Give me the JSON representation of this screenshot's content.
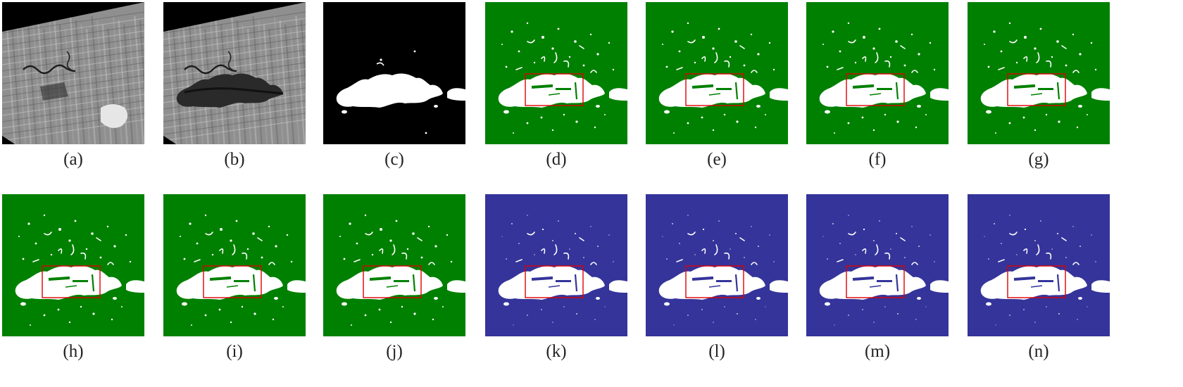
{
  "figure": {
    "colors": {
      "change": "#ffffff",
      "unchanged_black": "#000000",
      "unchanged_green": "#008000",
      "unchanged_blue": "#34349b",
      "highlight_box": "#e00000",
      "sar_dark": "#2a2a2a",
      "sar_light": "#bdbdbd"
    },
    "panels": [
      {
        "id": "a",
        "label": "(a)",
        "kind": "sar-pre"
      },
      {
        "id": "b",
        "label": "(b)",
        "kind": "sar-post"
      },
      {
        "id": "c",
        "label": "(c)",
        "kind": "reference-map"
      },
      {
        "id": "d",
        "label": "(d)",
        "kind": "result-green"
      },
      {
        "id": "e",
        "label": "(e)",
        "kind": "result-green"
      },
      {
        "id": "f",
        "label": "(f)",
        "kind": "result-green"
      },
      {
        "id": "g",
        "label": "(g)",
        "kind": "result-green"
      },
      {
        "id": "h",
        "label": "(h)",
        "kind": "result-green"
      },
      {
        "id": "i",
        "label": "(i)",
        "kind": "result-green"
      },
      {
        "id": "j",
        "label": "(j)",
        "kind": "result-green"
      },
      {
        "id": "k",
        "label": "(k)",
        "kind": "result-blue"
      },
      {
        "id": "l",
        "label": "(l)",
        "kind": "result-blue"
      },
      {
        "id": "m",
        "label": "(m)",
        "kind": "result-blue"
      },
      {
        "id": "n",
        "label": "(n)",
        "kind": "result-blue"
      }
    ]
  }
}
